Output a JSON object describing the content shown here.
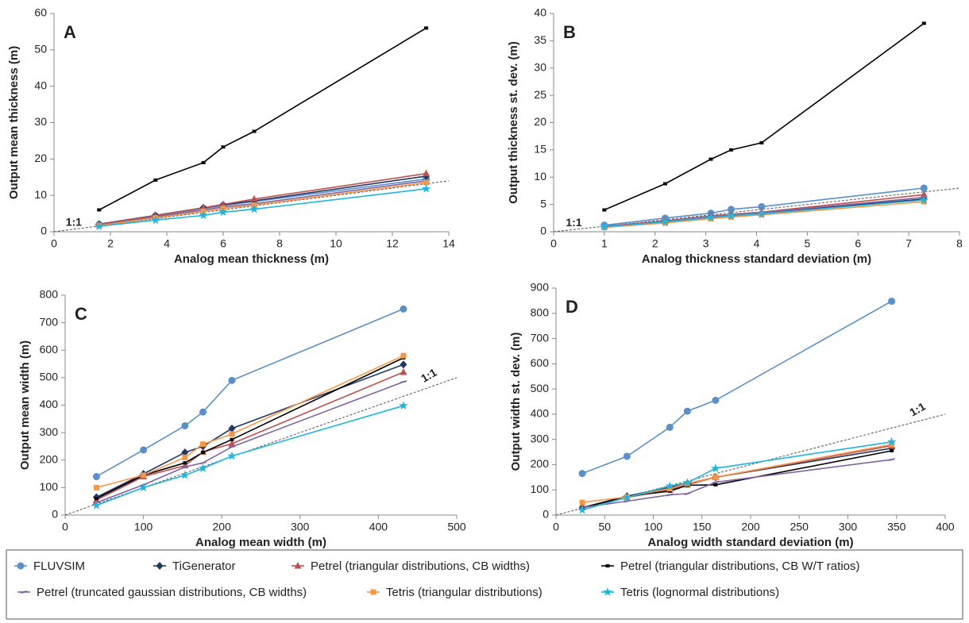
{
  "legend": {
    "names": [
      "FLUVSIM",
      "TiGenerator",
      "Petrel (triangular distributions, CB widths)",
      "Petrel (triangular distributions, CB W/T ratios)",
      "Petrel (truncated gaussian distributions, CB widths)",
      "Tetris (triangular distributions)",
      "Tetris (lognormal distributions)"
    ],
    "colors": [
      "#5b8fc9",
      "#1f3864",
      "#c0504d",
      "#000000",
      "#8064a2",
      "#f79646",
      "#1fb5e0"
    ],
    "markers": [
      "circle",
      "diamond",
      "triangle",
      "dash",
      "line",
      "square",
      "star"
    ]
  },
  "chart_data": [
    {
      "type": "line",
      "label": "A",
      "xlabel": "Analog mean thickness (m)",
      "ylabel": "Output mean thickness (m)",
      "annotation": "1:1",
      "x": [
        1.6,
        3.6,
        5.3,
        6.0,
        7.1,
        13.2
      ],
      "xlim": [
        0,
        14
      ],
      "xticks": [
        0,
        2,
        4,
        6,
        8,
        10,
        12,
        14
      ],
      "ylim": [
        0,
        60
      ],
      "yticks": [
        0,
        10,
        20,
        30,
        40,
        50,
        60
      ],
      "series": [
        {
          "values": [
            2.0,
            4.3,
            6.4,
            7.2,
            8.3,
            14.5
          ]
        },
        {
          "values": [
            2.1,
            4.5,
            6.6,
            7.4,
            8.5,
            15.3
          ]
        },
        {
          "values": [
            2.0,
            4.4,
            6.6,
            7.5,
            9.0,
            16.0
          ]
        },
        {
          "values": [
            6.0,
            14.2,
            19.0,
            23.3,
            27.6,
            56.0
          ]
        },
        {
          "values": [
            1.8,
            4.0,
            6.0,
            6.8,
            7.7,
            14.0
          ]
        },
        {
          "values": [
            1.7,
            3.8,
            5.6,
            6.4,
            7.3,
            13.5
          ]
        },
        {
          "values": [
            1.5,
            3.2,
            4.5,
            5.4,
            6.2,
            11.8
          ]
        }
      ]
    },
    {
      "type": "line",
      "label": "B",
      "xlabel": "Analog thickness standard deviation (m)",
      "ylabel": "Output thickness st. dev. (m)",
      "annotation": "1:1",
      "x": [
        1.0,
        2.2,
        3.1,
        3.5,
        4.1,
        7.3
      ],
      "xlim": [
        0,
        8
      ],
      "xticks": [
        0,
        1,
        2,
        3,
        4,
        5,
        6,
        7,
        8
      ],
      "ylim": [
        0,
        40
      ],
      "yticks": [
        0,
        5,
        10,
        15,
        20,
        25,
        30,
        35,
        40
      ],
      "series": [
        {
          "values": [
            1.2,
            2.5,
            3.4,
            4.1,
            4.6,
            8.0
          ]
        },
        {
          "values": [
            0.9,
            1.8,
            2.7,
            3.0,
            3.4,
            6.0
          ]
        },
        {
          "values": [
            1.0,
            2.0,
            2.9,
            3.2,
            3.6,
            6.8
          ]
        },
        {
          "values": [
            4.0,
            8.8,
            13.3,
            15.0,
            16.3,
            38.2
          ]
        },
        {
          "values": [
            0.9,
            1.9,
            2.8,
            3.1,
            3.5,
            6.3
          ]
        },
        {
          "values": [
            0.8,
            1.6,
            2.4,
            2.7,
            3.1,
            5.5
          ]
        },
        {
          "values": [
            0.9,
            1.8,
            2.6,
            2.9,
            3.3,
            5.8
          ]
        }
      ]
    },
    {
      "type": "line",
      "label": "C",
      "xlabel": "Analog mean width (m)",
      "ylabel": "Output mean width (m)",
      "annotation": "1:1",
      "x": [
        40,
        100,
        153,
        176,
        213,
        432
      ],
      "xlim": [
        0,
        500
      ],
      "xticks": [
        0,
        100,
        200,
        300,
        400,
        500
      ],
      "ylim": [
        0,
        800
      ],
      "yticks": [
        0,
        100,
        200,
        300,
        400,
        500,
        600,
        700,
        800
      ],
      "series": [
        {
          "values": [
            140,
            237,
            325,
            375,
            490,
            750
          ]
        },
        {
          "values": [
            65,
            150,
            228,
            250,
            315,
            548
          ]
        },
        {
          "values": [
            55,
            140,
            180,
            230,
            260,
            520
          ]
        },
        {
          "values": [
            60,
            145,
            190,
            228,
            275,
            572
          ]
        },
        {
          "values": [
            45,
            110,
            175,
            190,
            248,
            485
          ]
        },
        {
          "values": [
            100,
            145,
            210,
            258,
            295,
            580
          ]
        },
        {
          "values": [
            35,
            100,
            145,
            170,
            215,
            398
          ]
        }
      ]
    },
    {
      "type": "line",
      "label": "D",
      "xlabel": "Analog width standard deviation (m)",
      "ylabel": "Output width st. dev. (m)",
      "annotation": "1:1",
      "x": [
        27,
        73,
        117,
        135,
        164,
        345
      ],
      "xlim": [
        0,
        400
      ],
      "xticks": [
        0,
        50,
        100,
        150,
        200,
        250,
        300,
        350,
        400
      ],
      "ylim": [
        0,
        900
      ],
      "yticks": [
        0,
        100,
        200,
        300,
        400,
        500,
        600,
        700,
        800,
        900
      ],
      "series": [
        {
          "values": [
            165,
            233,
            348,
            412,
            455,
            848
          ]
        },
        {
          "values": [
            30,
            75,
            110,
            125,
            150,
            265
          ]
        },
        {
          "values": [
            30,
            70,
            100,
            120,
            150,
            275
          ]
        },
        {
          "values": [
            28,
            75,
            95,
            118,
            120,
            255
          ]
        },
        {
          "values": [
            30,
            55,
            80,
            85,
            130,
            220
          ]
        },
        {
          "values": [
            50,
            72,
            105,
            125,
            150,
            280
          ]
        },
        {
          "values": [
            20,
            70,
            115,
            128,
            185,
            290
          ]
        }
      ]
    }
  ]
}
